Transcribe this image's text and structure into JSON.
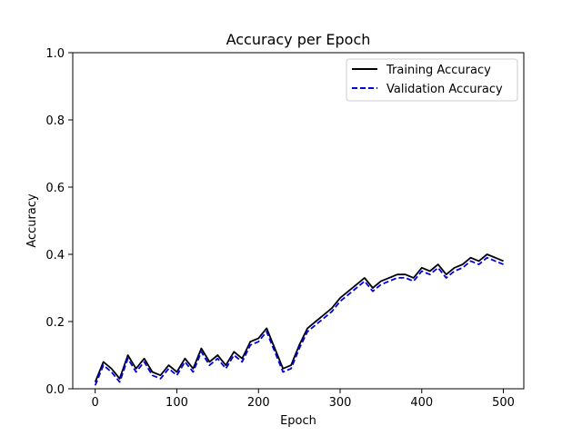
{
  "chart_data": {
    "type": "line",
    "title": "Accuracy per Epoch",
    "xlabel": "Epoch",
    "ylabel": "Accuracy",
    "xlim": [
      -27.5,
      525
    ],
    "ylim": [
      0.0,
      1.0
    ],
    "xticks": [
      0,
      100,
      200,
      300,
      400,
      500
    ],
    "yticks": [
      0.0,
      0.2,
      0.4,
      0.6,
      0.8,
      1.0
    ],
    "xtick_labels": [
      "0",
      "100",
      "200",
      "300",
      "400",
      "500"
    ],
    "ytick_labels": [
      "0.0",
      "0.2",
      "0.4",
      "0.6",
      "0.8",
      "1.0"
    ],
    "grid": false,
    "legend_position": "top-right",
    "series": [
      {
        "name": "Training Accuracy",
        "color": "#000000",
        "style": "solid",
        "x": [
          0,
          10,
          20,
          30,
          40,
          50,
          60,
          70,
          80,
          90,
          100,
          110,
          120,
          130,
          140,
          150,
          160,
          170,
          180,
          190,
          200,
          210,
          220,
          230,
          240,
          250,
          260,
          270,
          280,
          290,
          300,
          310,
          320,
          330,
          340,
          350,
          360,
          370,
          380,
          390,
          400,
          410,
          420,
          430,
          440,
          450,
          460,
          470,
          480,
          490,
          500
        ],
        "y": [
          0.02,
          0.08,
          0.06,
          0.03,
          0.1,
          0.06,
          0.09,
          0.05,
          0.04,
          0.07,
          0.05,
          0.09,
          0.06,
          0.12,
          0.08,
          0.1,
          0.07,
          0.11,
          0.09,
          0.14,
          0.15,
          0.18,
          0.12,
          0.06,
          0.07,
          0.13,
          0.18,
          0.2,
          0.22,
          0.24,
          0.27,
          0.29,
          0.31,
          0.33,
          0.3,
          0.32,
          0.33,
          0.34,
          0.34,
          0.33,
          0.36,
          0.35,
          0.37,
          0.34,
          0.36,
          0.37,
          0.39,
          0.38,
          0.4,
          0.39,
          0.38
        ]
      },
      {
        "name": "Validation Accuracy",
        "color": "#0000ee",
        "style": "dashed",
        "x": [
          0,
          10,
          20,
          30,
          40,
          50,
          60,
          70,
          80,
          90,
          100,
          110,
          120,
          130,
          140,
          150,
          160,
          170,
          180,
          190,
          200,
          210,
          220,
          230,
          240,
          250,
          260,
          270,
          280,
          290,
          300,
          310,
          320,
          330,
          340,
          350,
          360,
          370,
          380,
          390,
          400,
          410,
          420,
          430,
          440,
          450,
          460,
          470,
          480,
          490,
          500
        ],
        "y": [
          0.01,
          0.07,
          0.05,
          0.02,
          0.09,
          0.05,
          0.08,
          0.04,
          0.03,
          0.06,
          0.04,
          0.08,
          0.05,
          0.11,
          0.07,
          0.09,
          0.06,
          0.1,
          0.08,
          0.13,
          0.14,
          0.17,
          0.11,
          0.05,
          0.06,
          0.12,
          0.17,
          0.19,
          0.21,
          0.23,
          0.26,
          0.28,
          0.3,
          0.32,
          0.29,
          0.31,
          0.32,
          0.33,
          0.33,
          0.32,
          0.35,
          0.34,
          0.36,
          0.33,
          0.35,
          0.36,
          0.38,
          0.37,
          0.39,
          0.38,
          0.37
        ]
      }
    ]
  }
}
